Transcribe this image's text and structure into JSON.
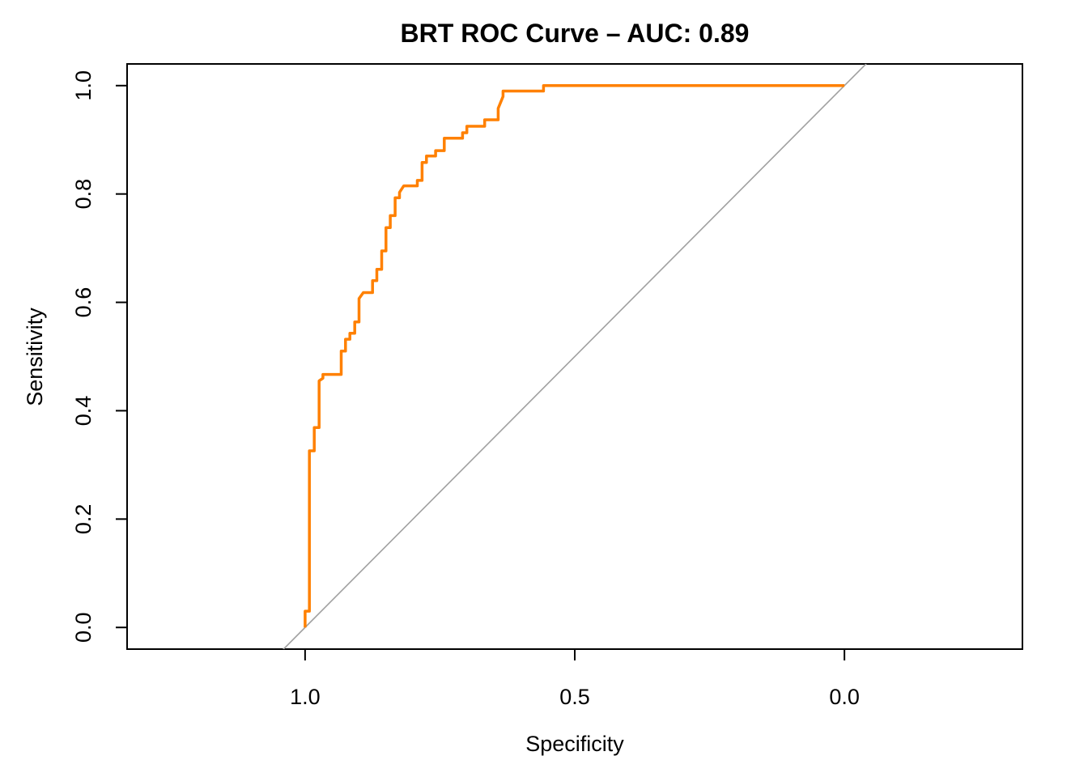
{
  "chart_data": {
    "type": "line",
    "title": "BRT ROC Curve – AUC: 0.89",
    "xlabel": "Specificity",
    "ylabel": "Sensitivity",
    "x_reversed": true,
    "xlim": [
      1.33,
      -0.33
    ],
    "ylim": [
      -0.04,
      1.04
    ],
    "x_ticks": [
      1.0,
      0.5,
      0.0
    ],
    "x_tick_labels": [
      "1.0",
      "0.5",
      "0.0"
    ],
    "y_ticks": [
      0.0,
      0.2,
      0.4,
      0.6,
      0.8,
      1.0
    ],
    "y_tick_labels": [
      "0.0",
      "0.2",
      "0.4",
      "0.6",
      "0.8",
      "1.0"
    ],
    "grid": false,
    "reference_line": {
      "from": [
        1,
        0
      ],
      "to": [
        0,
        1
      ],
      "color": "#a0a0a0"
    },
    "series": [
      {
        "color": "#ff8000",
        "points": [
          [
            1.0,
            0.0
          ],
          [
            1.0,
            0.03
          ],
          [
            0.992,
            0.03
          ],
          [
            0.992,
            0.326
          ],
          [
            0.983,
            0.326
          ],
          [
            0.983,
            0.369
          ],
          [
            0.974,
            0.369
          ],
          [
            0.974,
            0.455
          ],
          [
            0.967,
            0.46
          ],
          [
            0.967,
            0.467
          ],
          [
            0.933,
            0.467
          ],
          [
            0.933,
            0.51
          ],
          [
            0.925,
            0.51
          ],
          [
            0.925,
            0.532
          ],
          [
            0.917,
            0.532
          ],
          [
            0.917,
            0.543
          ],
          [
            0.908,
            0.543
          ],
          [
            0.908,
            0.564
          ],
          [
            0.9,
            0.564
          ],
          [
            0.9,
            0.607
          ],
          [
            0.892,
            0.618
          ],
          [
            0.875,
            0.618
          ],
          [
            0.875,
            0.64
          ],
          [
            0.867,
            0.64
          ],
          [
            0.867,
            0.661
          ],
          [
            0.858,
            0.661
          ],
          [
            0.858,
            0.695
          ],
          [
            0.85,
            0.695
          ],
          [
            0.85,
            0.738
          ],
          [
            0.842,
            0.738
          ],
          [
            0.842,
            0.76
          ],
          [
            0.833,
            0.76
          ],
          [
            0.833,
            0.793
          ],
          [
            0.825,
            0.793
          ],
          [
            0.825,
            0.803
          ],
          [
            0.817,
            0.815
          ],
          [
            0.792,
            0.815
          ],
          [
            0.792,
            0.825
          ],
          [
            0.783,
            0.825
          ],
          [
            0.783,
            0.858
          ],
          [
            0.775,
            0.858
          ],
          [
            0.775,
            0.87
          ],
          [
            0.758,
            0.87
          ],
          [
            0.758,
            0.88
          ],
          [
            0.742,
            0.88
          ],
          [
            0.742,
            0.903
          ],
          [
            0.708,
            0.903
          ],
          [
            0.708,
            0.913
          ],
          [
            0.7,
            0.913
          ],
          [
            0.7,
            0.925
          ],
          [
            0.667,
            0.925
          ],
          [
            0.667,
            0.937
          ],
          [
            0.642,
            0.937
          ],
          [
            0.642,
            0.958
          ],
          [
            0.633,
            0.98
          ],
          [
            0.633,
            0.99
          ],
          [
            0.558,
            0.99
          ],
          [
            0.558,
            1.0
          ],
          [
            0.0,
            1.0
          ]
        ]
      }
    ]
  }
}
